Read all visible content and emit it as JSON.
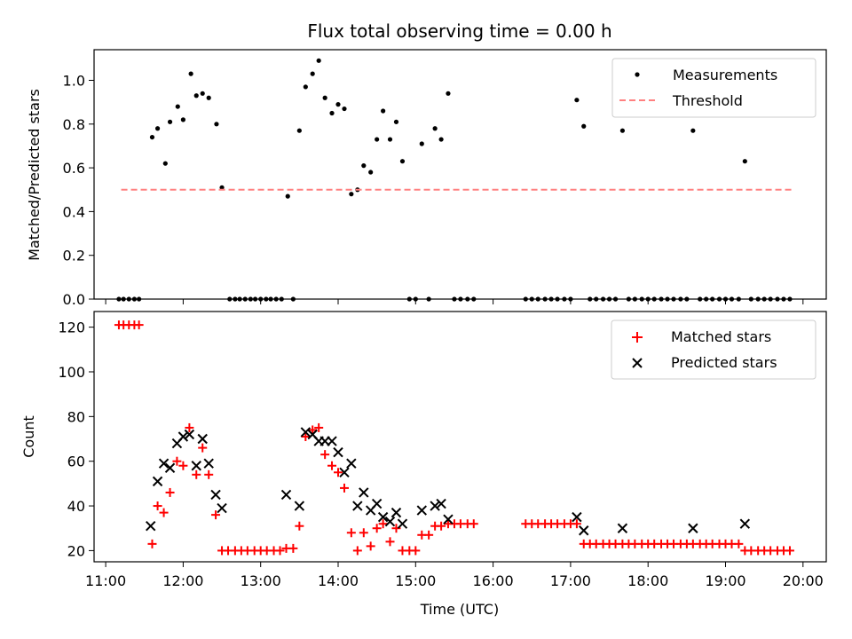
{
  "chart_data": {
    "title": "Flux total observing time = 0.00 h",
    "x_tick_labels": [
      "11:00",
      "12:00",
      "13:00",
      "14:00",
      "15:00",
      "16:00",
      "17:00",
      "18:00",
      "19:00",
      "20:00"
    ],
    "xlabel": "Time (UTC)",
    "xlim_hours": [
      10.85,
      20.3
    ],
    "panels": [
      {
        "type": "scatter",
        "ylabel": "Matched/Predicted stars",
        "ylim": [
          0,
          1.14
        ],
        "y_ticks": [
          0.0,
          0.2,
          0.4,
          0.6,
          0.8,
          1.0
        ],
        "y_tick_labels": [
          "0.0",
          "0.2",
          "0.4",
          "0.6",
          "0.8",
          "1.0"
        ],
        "legend_position": "top-right",
        "series": [
          {
            "name": "Measurements",
            "marker": "dot",
            "color": "#000000",
            "x": [
              11.17,
              11.23,
              11.3,
              11.37,
              11.43,
              11.6,
              11.67,
              11.77,
              11.83,
              11.93,
              12.0,
              12.1,
              12.17,
              12.25,
              12.33,
              12.43,
              12.5,
              12.6,
              12.67,
              12.73,
              12.8,
              12.87,
              12.93,
              13.0,
              13.07,
              13.13,
              13.2,
              13.27,
              13.35,
              13.42,
              13.5,
              13.58,
              13.67,
              13.75,
              13.83,
              13.92,
              14.0,
              14.08,
              14.17,
              14.25,
              14.33,
              14.42,
              14.5,
              14.58,
              14.67,
              14.75,
              14.83,
              14.92,
              15.0,
              15.08,
              15.17,
              15.25,
              15.33,
              15.42,
              15.5,
              15.58,
              15.67,
              15.75,
              16.42,
              16.5,
              16.58,
              16.67,
              16.75,
              16.83,
              16.92,
              17.0,
              17.08,
              17.17,
              17.25,
              17.33,
              17.42,
              17.5,
              17.58,
              17.67,
              17.75,
              17.83,
              17.92,
              18.0,
              18.08,
              18.17,
              18.25,
              18.33,
              18.42,
              18.5,
              18.58,
              18.67,
              18.75,
              18.83,
              18.92,
              19.0,
              19.08,
              19.17,
              19.25,
              19.33,
              19.42,
              19.5,
              19.58,
              19.67,
              19.75,
              19.83
            ],
            "y": [
              0,
              0,
              0,
              0,
              0,
              0.74,
              0.78,
              0.62,
              0.81,
              0.88,
              0.82,
              1.03,
              0.93,
              0.94,
              0.92,
              0.8,
              0.51,
              0,
              0,
              0,
              0,
              0,
              0,
              0,
              0,
              0,
              0,
              0,
              0.47,
              0,
              0.77,
              0.97,
              1.03,
              1.09,
              0.92,
              0.85,
              0.89,
              0.87,
              0.48,
              0.5,
              0.61,
              0.58,
              0.73,
              0.86,
              0.73,
              0.81,
              0.63,
              0,
              0,
              0.71,
              0,
              0.78,
              0.73,
              0.94,
              0,
              0,
              0,
              0,
              0,
              0,
              0,
              0,
              0,
              0,
              0,
              0,
              0.91,
              0.79,
              0,
              0,
              0,
              0,
              0,
              0.77,
              0,
              0,
              0,
              0,
              0,
              0,
              0,
              0,
              0,
              0,
              0.77,
              0,
              0,
              0,
              0,
              0,
              0,
              0,
              0.63,
              0,
              0,
              0,
              0,
              0,
              0,
              0
            ]
          },
          {
            "name": "Threshold",
            "marker": "dashed-line",
            "color": "#ff8080",
            "x": [
              11.2,
              19.85
            ],
            "y": [
              0.5,
              0.5
            ]
          }
        ]
      },
      {
        "type": "scatter",
        "ylabel": "Count",
        "ylim": [
          15,
          127
        ],
        "y_ticks": [
          20,
          40,
          60,
          80,
          100,
          120
        ],
        "y_tick_labels": [
          "20",
          "40",
          "60",
          "80",
          "100",
          "120"
        ],
        "legend_position": "top-right",
        "series": [
          {
            "name": "Matched stars",
            "marker": "plus",
            "color": "#ff0000",
            "x": [
              11.17,
              11.23,
              11.3,
              11.37,
              11.43,
              11.6,
              11.67,
              11.75,
              11.83,
              11.92,
              12.0,
              12.08,
              12.17,
              12.25,
              12.33,
              12.42,
              12.5,
              12.58,
              12.67,
              12.75,
              12.83,
              12.92,
              13.0,
              13.08,
              13.17,
              13.25,
              13.33,
              13.42,
              13.5,
              13.58,
              13.67,
              13.75,
              13.83,
              13.92,
              14.0,
              14.08,
              14.17,
              14.25,
              14.33,
              14.42,
              14.5,
              14.58,
              14.67,
              14.75,
              14.83,
              14.92,
              15.0,
              15.08,
              15.17,
              15.25,
              15.33,
              15.42,
              15.5,
              15.58,
              15.67,
              15.75,
              16.42,
              16.5,
              16.58,
              16.67,
              16.75,
              16.83,
              16.92,
              17.0,
              17.08,
              17.17,
              17.25,
              17.33,
              17.42,
              17.5,
              17.58,
              17.67,
              17.75,
              17.83,
              17.92,
              18.0,
              18.08,
              18.17,
              18.25,
              18.33,
              18.42,
              18.5,
              18.58,
              18.67,
              18.75,
              18.83,
              18.92,
              19.0,
              19.08,
              19.17,
              19.25,
              19.33,
              19.42,
              19.5,
              19.58,
              19.67,
              19.75,
              19.83
            ],
            "y": [
              121,
              121,
              121,
              121,
              121,
              23,
              40,
              37,
              46,
              60,
              58,
              75,
              54,
              66,
              54,
              36,
              20,
              20,
              20,
              20,
              20,
              20,
              20,
              20,
              20,
              20,
              21,
              21,
              31,
              71,
              74,
              75,
              63,
              58,
              55,
              48,
              28,
              20,
              28,
              22,
              30,
              32,
              24,
              30,
              20,
              20,
              20,
              27,
              27,
              31,
              31,
              32,
              32,
              32,
              32,
              32,
              32,
              32,
              32,
              32,
              32,
              32,
              32,
              32,
              32,
              23,
              23,
              23,
              23,
              23,
              23,
              23,
              23,
              23,
              23,
              23,
              23,
              23,
              23,
              23,
              23,
              23,
              23,
              23,
              23,
              23,
              23,
              23,
              23,
              23,
              20,
              20,
              20,
              20,
              20,
              20,
              20,
              20
            ]
          },
          {
            "name": "Predicted stars",
            "marker": "x",
            "color": "#000000",
            "x": [
              11.58,
              11.67,
              11.75,
              11.83,
              11.92,
              12.0,
              12.08,
              12.17,
              12.25,
              12.33,
              12.42,
              12.5,
              13.33,
              13.5,
              13.58,
              13.67,
              13.75,
              13.83,
              13.92,
              14.0,
              14.08,
              14.17,
              14.25,
              14.33,
              14.42,
              14.5,
              14.58,
              14.67,
              14.75,
              14.83,
              15.08,
              15.25,
              15.33,
              15.42,
              17.08,
              17.17,
              17.67,
              18.58,
              19.25
            ],
            "y": [
              31,
              51,
              59,
              57,
              68,
              71,
              72,
              58,
              70,
              59,
              45,
              39,
              45,
              40,
              73,
              72,
              69,
              69,
              69,
              64,
              55,
              59,
              40,
              46,
              38,
              41,
              35,
              33,
              37,
              32,
              38,
              40,
              41,
              34,
              35,
              29,
              30,
              30,
              32
            ]
          }
        ]
      }
    ]
  }
}
